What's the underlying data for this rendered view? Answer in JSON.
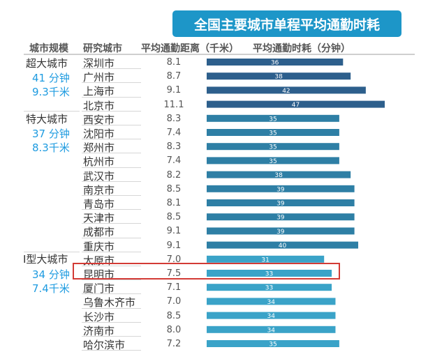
{
  "title": "全国主要城市单程平均通勤时耗",
  "headers": {
    "scale": "城市规模",
    "city": "研究城市",
    "distance": "平均通勤距离（千米）",
    "time": "平均通勤时耗（分钟）"
  },
  "tiers": [
    {
      "name": "超大城市",
      "time": "41 分钟",
      "dist": "9.3千米"
    },
    {
      "name": "特大城市",
      "time": "37 分钟",
      "dist": "8.3千米"
    },
    {
      "name": "Ⅰ型大城市",
      "time": "34 分钟",
      "dist": "7.4千米"
    }
  ],
  "highlight": "昆明市",
  "colors": {
    "bar_dark": "#2d5f8c",
    "bar_mid": "#2e7fa5",
    "bar_light": "#3aa3c8",
    "title_bg": "#1d96c8",
    "highlight": "#d33a35"
  },
  "chart_data": {
    "type": "bar",
    "orientation": "horizontal",
    "title": "全国主要城市单程平均通勤时耗",
    "categories": [
      "深圳市",
      "广州市",
      "上海市",
      "北京市",
      "西安市",
      "沈阳市",
      "郑州市",
      "杭州市",
      "武汉市",
      "南京市",
      "青岛市",
      "天津市",
      "成都市",
      "重庆市",
      "太原市",
      "昆明市",
      "厦门市",
      "乌鲁木齐市",
      "长沙市",
      "济南市",
      "哈尔滨市"
    ],
    "distance_km": [
      "8.1",
      "8.7",
      "9.1",
      "11.1",
      "8.3",
      "7.4",
      "8.3",
      "7.4",
      "8.2",
      "8.5",
      "8.1",
      "8.5",
      "9.1",
      "9.1",
      "7.0",
      "7.5",
      "7.1",
      "7.0",
      "8.5",
      "8.0",
      "7.2"
    ],
    "series": [
      {
        "name": "平均通勤时耗（分钟）",
        "values": [
          36,
          38,
          42,
          47,
          35,
          35,
          35,
          35,
          38,
          39,
          39,
          39,
          39,
          40,
          31,
          33,
          33,
          34,
          34,
          34,
          35
        ]
      }
    ],
    "tier_index": [
      0,
      0,
      0,
      0,
      1,
      1,
      1,
      1,
      1,
      1,
      1,
      1,
      1,
      1,
      2,
      2,
      2,
      2,
      2,
      2,
      2
    ],
    "xlim": [
      0,
      47
    ]
  }
}
